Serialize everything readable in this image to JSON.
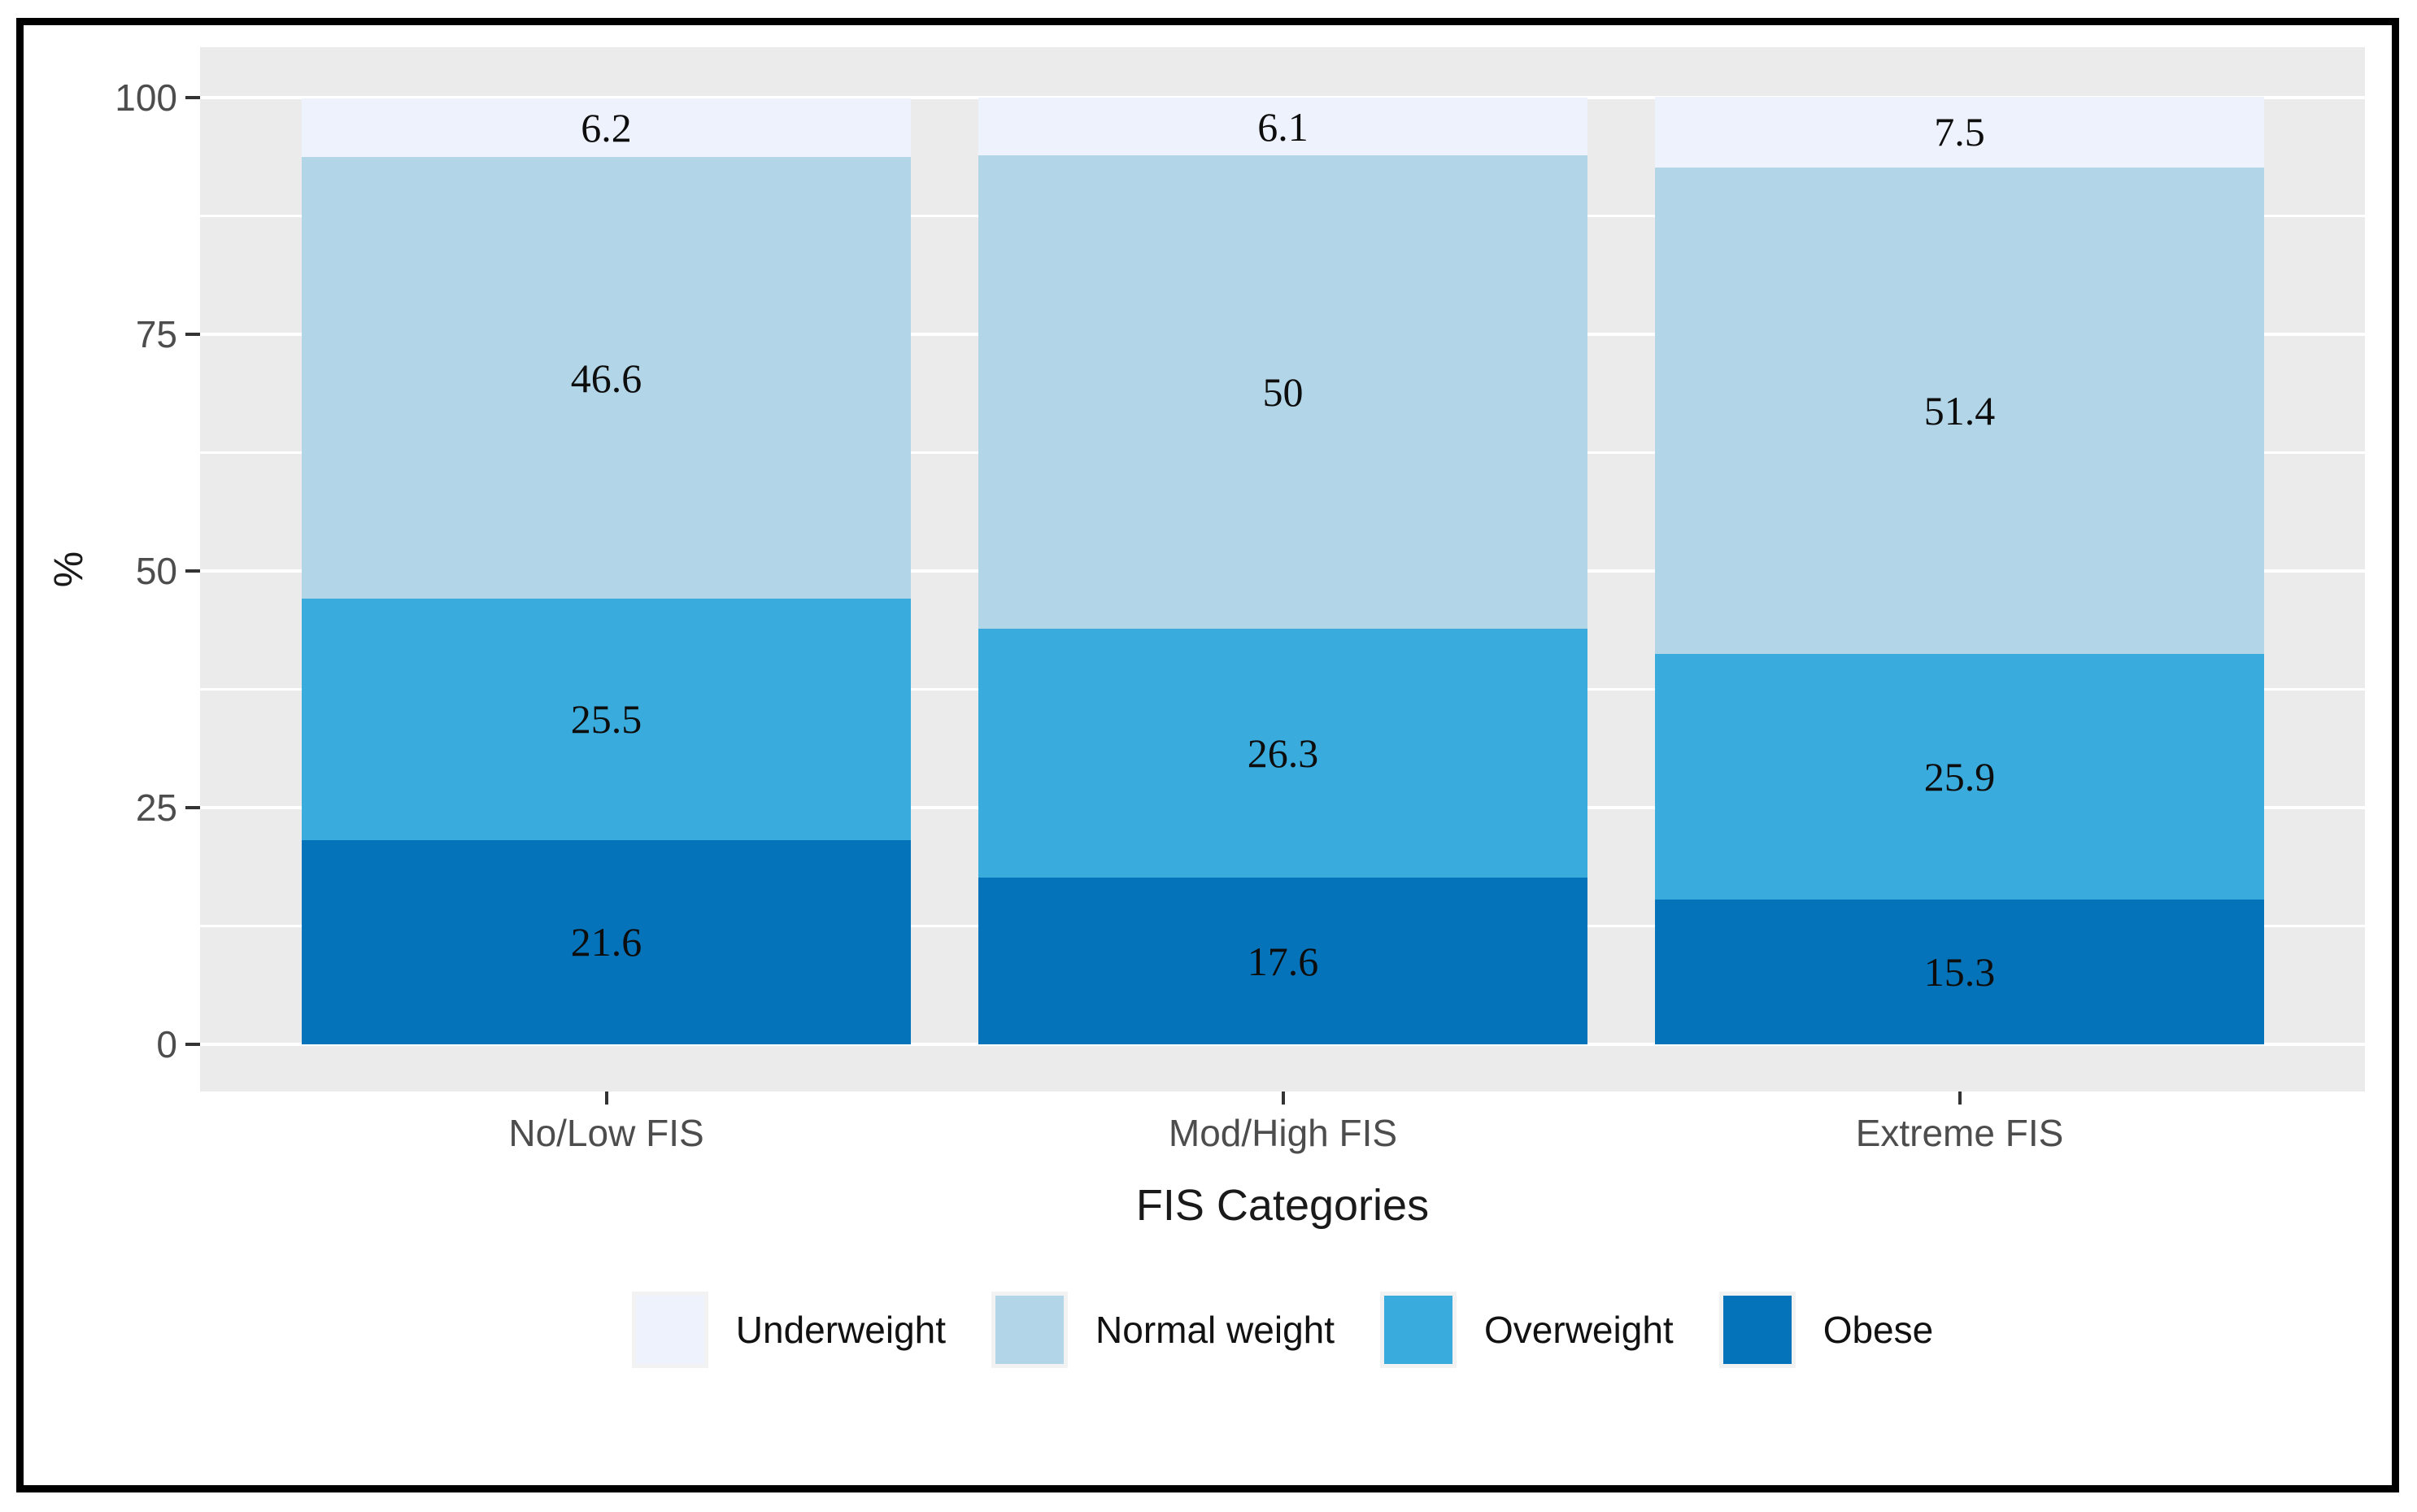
{
  "chart_data": {
    "type": "bar",
    "stacked": true,
    "orientation": "vertical",
    "xlabel": "FIS Categories",
    "ylabel": "%",
    "categories": [
      "No/Low FIS",
      "Mod/High FIS",
      "Extreme FIS"
    ],
    "series": [
      {
        "name": "Obese",
        "color": "#0573B9",
        "values": [
          21.6,
          17.6,
          15.3
        ],
        "labels": [
          "21.6",
          "17.6",
          "15.3"
        ]
      },
      {
        "name": "Overweight",
        "color": "#39ABDC",
        "values": [
          25.5,
          26.3,
          25.9
        ],
        "labels": [
          "25.5",
          "26.3",
          "25.9"
        ]
      },
      {
        "name": "Normal weight",
        "color": "#B2D6E8",
        "values": [
          46.6,
          50.0,
          51.4
        ],
        "labels": [
          "46.6",
          "50",
          "51.4"
        ]
      },
      {
        "name": "Underweight",
        "color": "#EEF2FC",
        "values": [
          6.2,
          6.1,
          7.5
        ],
        "labels": [
          "6.2",
          "6.1",
          "7.5"
        ]
      }
    ],
    "legend": {
      "position": "bottom",
      "order": [
        "Underweight",
        "Normal weight",
        "Overweight",
        "Obese"
      ]
    },
    "y_ticks": [
      0,
      25,
      50,
      75,
      100
    ],
    "y_minor_ticks": [
      12.5,
      37.5,
      62.5,
      87.5
    ],
    "ylim": [
      0,
      100
    ],
    "grid": true,
    "style": {
      "panel_background": "#EBEBEB",
      "gridline_color": "#FFFFFF",
      "tick_label_color": "#4D4D4D",
      "axis_title_color": "#1A1A1A",
      "bar_label_color": "#0D0D0D",
      "frame_color": "#000000"
    }
  }
}
